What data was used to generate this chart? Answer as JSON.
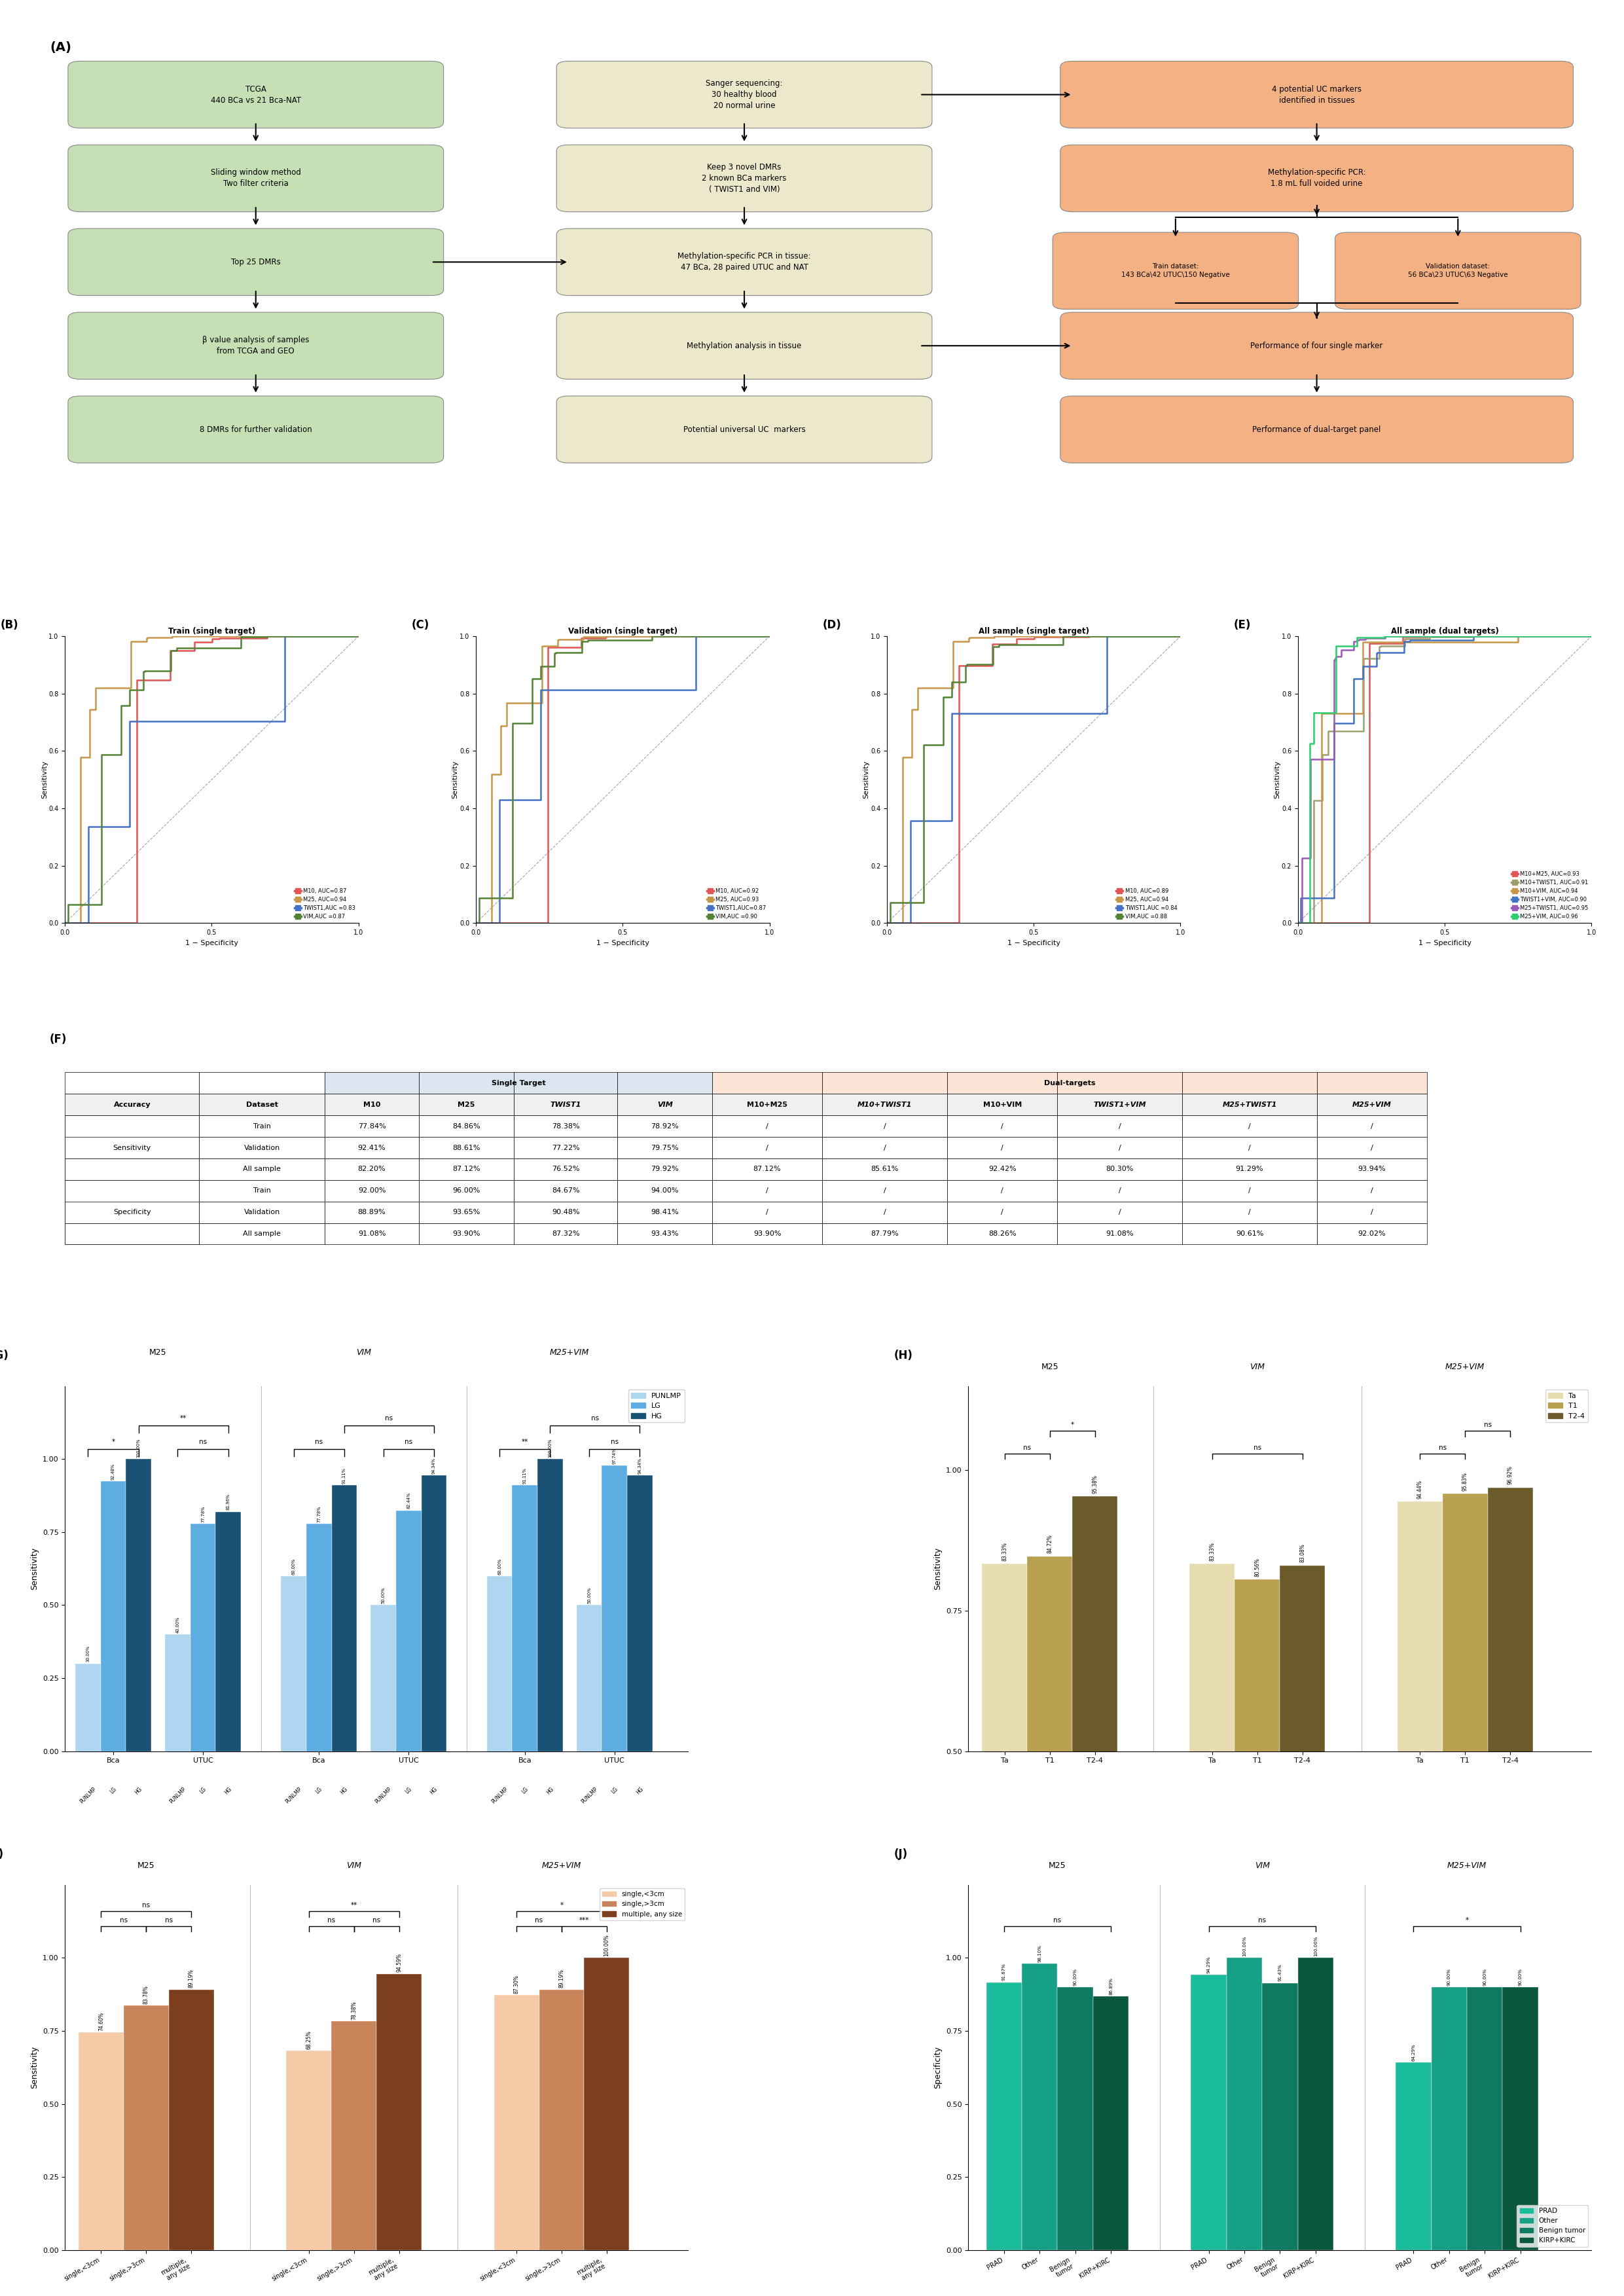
{
  "flowchart": {
    "green_boxes": [
      "TCGA\n440 BCa vs 21 Bca-NAT",
      "Sliding window method\nTwo filter criteria",
      "Top 25 DMRs",
      "β value analysis of samples\nfrom TCGA and GEO",
      "8 DMRs for further validation"
    ],
    "beige_boxes": [
      "Sanger sequencing:\n30 healthy blood\n20 normal urine",
      "Keep 3 novel DMRs\n2 known BCa markers\n( TWIST1 and VIM)",
      "Methylation-specific PCR in tissue:\n47 BCa, 28 paired UTUC and NAT",
      "Methylation analysis in tissue",
      "Potential universal UC  markers"
    ],
    "orange_boxes": [
      "4 potential UC markers\nidentified in tissues",
      "Methylation-specific PCR:\n1.8 mL full voided urine",
      "Train dataset:\n143 BCa\\42 UTUC\\150 Negative",
      "Validation dataset:\n56 BCa\\23 UTUC\\63 Negative",
      "Performance of four single marker",
      "Performance of dual-target panel"
    ],
    "green_color": "#c5e0b4",
    "beige_color": "#ebe8cc",
    "orange_color": "#f4b183"
  },
  "roc_B": {
    "title": "Train (single target)",
    "lines": [
      {
        "label": "M10, AUC=0.87",
        "color": "#e05555",
        "auc": 0.87
      },
      {
        "label": "M25, AUC=0.94",
        "color": "#c8964a",
        "auc": 0.94
      },
      {
        "label": "TWIST1,AUC =0.83",
        "color": "#4472c4",
        "auc": 0.83
      },
      {
        "label": "VIM,AUC =0.87",
        "color": "#548235",
        "auc": 0.87
      }
    ]
  },
  "roc_C": {
    "title": "Validation (single target)",
    "lines": [
      {
        "label": "M10, AUC=0.92",
        "color": "#e05555",
        "auc": 0.92
      },
      {
        "label": "M25, AUC=0.93",
        "color": "#c8964a",
        "auc": 0.93
      },
      {
        "label": "TWIST1,AUC=0.87",
        "color": "#4472c4",
        "auc": 0.87
      },
      {
        "label": "VIM,AUC =0.90",
        "color": "#548235",
        "auc": 0.9
      }
    ]
  },
  "roc_D": {
    "title": "All sample (single target)",
    "lines": [
      {
        "label": "M10, AUC=0.89",
        "color": "#e05555",
        "auc": 0.89
      },
      {
        "label": "M25, AUC=0.94",
        "color": "#c8964a",
        "auc": 0.94
      },
      {
        "label": "TWIST1,AUC =0.84",
        "color": "#4472c4",
        "auc": 0.84
      },
      {
        "label": "VIM,AUC =0.88",
        "color": "#548235",
        "auc": 0.88
      }
    ]
  },
  "roc_E": {
    "title": "All sample (dual targets)",
    "lines": [
      {
        "label": "M10+M25, AUC=0.93",
        "color": "#e05555",
        "auc": 0.93
      },
      {
        "label": "M10+TWIST1, AUC=0.91",
        "color": "#9e9e6e",
        "auc": 0.91
      },
      {
        "label": "M10+VIM, AUC=0.94",
        "color": "#c8964a",
        "auc": 0.94
      },
      {
        "label": "TWIST1+VIM, AUC=0.90",
        "color": "#4472c4",
        "auc": 0.9
      },
      {
        "label": "M25+TWIST1, AUC=0.95",
        "color": "#9b59b6",
        "auc": 0.95
      },
      {
        "label": "M25+VIM, AUC=0.96",
        "color": "#2ecc71",
        "auc": 0.96
      }
    ]
  },
  "table_F": {
    "rows": [
      [
        "Sensitivity",
        "Train",
        "77.84%",
        "84.86%",
        "78.38%",
        "78.92%",
        "/",
        "/",
        "/",
        "/",
        "/",
        "/"
      ],
      [
        "",
        "Validation",
        "92.41%",
        "88.61%",
        "77.22%",
        "79.75%",
        "/",
        "/",
        "/",
        "/",
        "/",
        "/"
      ],
      [
        "",
        "All sample",
        "82.20%",
        "87.12%",
        "76.52%",
        "79.92%",
        "87.12%",
        "85.61%",
        "92.42%",
        "80.30%",
        "91.29%",
        "93.94%"
      ],
      [
        "Specificity",
        "Train",
        "92.00%",
        "96.00%",
        "84.67%",
        "94.00%",
        "/",
        "/",
        "/",
        "/",
        "/",
        "/"
      ],
      [
        "",
        "Validation",
        "88.89%",
        "93.65%",
        "90.48%",
        "98.41%",
        "/",
        "/",
        "/",
        "/",
        "/",
        "/"
      ],
      [
        "",
        "All sample",
        "91.08%",
        "93.90%",
        "87.32%",
        "93.43%",
        "93.90%",
        "87.79%",
        "88.26%",
        "91.08%",
        "90.61%",
        "92.02%"
      ]
    ]
  },
  "bar_G": {
    "groups": [
      "M25",
      "VIM",
      "M25+VIM"
    ],
    "vals": {
      "M25": {
        "Bca": [
          0.3,
          0.9248,
          1.0
        ],
        "UTUC": [
          0.4,
          0.7778,
          0.8196
        ]
      },
      "VIM": {
        "Bca": [
          0.6,
          0.7778,
          0.9111
        ],
        "UTUC": [
          0.5,
          0.8244,
          0.9434
        ]
      },
      "M25+VIM": {
        "Bca": [
          0.6,
          0.9111,
          1.0
        ],
        "UTUC": [
          0.5,
          0.9774,
          0.9434
        ]
      }
    },
    "labels": {
      "Bca": [
        30.0,
        92.48,
        100.0
      ],
      "UTUC_M25": [
        40.0,
        77.78,
        81.96
      ],
      "Bca_VIM": [
        60.0,
        77.78,
        91.11
      ],
      "UTUC_VIM": [
        50.0,
        82.44,
        94.34
      ],
      "Bca_combo": [
        60.0,
        91.11,
        100.0
      ],
      "UTUC_combo": [
        50.0,
        97.74,
        94.34
      ]
    },
    "bar_values": [
      [
        0.3,
        0.9248,
        1.0,
        0.4,
        0.7778,
        0.8196
      ],
      [
        0.6,
        0.7778,
        0.9111,
        0.5,
        0.8244,
        0.9434
      ],
      [
        0.6,
        0.9111,
        1.0,
        0.5,
        0.9774,
        0.9434
      ]
    ],
    "bar_labels": [
      [
        "30.00%",
        "92.48%",
        "100.00%",
        "40.00%",
        "77.78%",
        "81.96%"
      ],
      [
        "60.00%",
        "77.78%",
        "91.11%",
        "50.00%",
        "82.44%",
        "94.34%"
      ],
      [
        "60.00%",
        "91.11%",
        "100.00%",
        "50.00%",
        "97.74%",
        "94.34%"
      ]
    ],
    "colors": [
      "#aed6f1",
      "#5dade2",
      "#1a5276"
    ],
    "cat_labels": [
      "Bca",
      "UTUC"
    ],
    "sub_labels": [
      "PUNLMP",
      "LG",
      "HG"
    ],
    "punlmp_color": "#d0eaf8",
    "lg_color": "#5dade2",
    "hg_color": "#1a5276"
  },
  "bar_H": {
    "groups": [
      "M25",
      "VIM",
      "M25+VIM"
    ],
    "bar_values": [
      [
        0.8333,
        0.8472,
        0.9538
      ],
      [
        0.8333,
        0.8056,
        0.8308
      ],
      [
        0.9444,
        0.9583,
        0.9692
      ]
    ],
    "bar_labels": [
      [
        "83.33%",
        "84.72%",
        "95.38%"
      ],
      [
        "83.33%",
        "80.56%",
        "83.08%"
      ],
      [
        "94.44%",
        "95.83%",
        "96.92%"
      ]
    ],
    "colors": [
      "#e8ddb0",
      "#b8a050",
      "#6b5a2a"
    ],
    "sub_labels": [
      "Ta",
      "T1",
      "T2-4"
    ],
    "ylim": [
      0.5,
      1.1
    ]
  },
  "bar_I": {
    "groups": [
      "M25",
      "VIM",
      "M25+VIM"
    ],
    "bar_values": [
      [
        0.746,
        0.8378,
        0.8919
      ],
      [
        0.6825,
        0.7838,
        0.9459
      ],
      [
        0.873,
        0.8919,
        1.0
      ]
    ],
    "bar_labels": [
      [
        "74.60%",
        "83.78%",
        "89.19%"
      ],
      [
        "68.25%",
        "78.38%",
        "94.59%"
      ],
      [
        "87.30%",
        "89.19%",
        "100.00%"
      ]
    ],
    "colors": [
      "#f5cba7",
      "#c8855a",
      "#7b3f1e"
    ],
    "sub_labels": [
      "single,<3cm",
      "single,>3cm",
      "multiple,\nany size"
    ],
    "ylim": [
      0.0,
      1.2
    ]
  },
  "bar_J": {
    "groups": [
      "M25",
      "VIM",
      "M25+VIM"
    ],
    "bar_values": [
      [
        0.9167,
        0.981,
        0.9,
        0.8689
      ],
      [
        0.9429,
        1.0,
        0.9143,
        1.0
      ],
      [
        0.6429,
        0.9,
        0.9,
        0.9
      ]
    ],
    "bar_labels": [
      [
        "91.67%",
        "98.10%",
        "90.00%",
        "86.89%"
      ],
      [
        "94.29%",
        "100.00%",
        "91.43%",
        "100.00%"
      ],
      [
        "64.29%",
        "90.00%",
        "90.00%",
        "90.00%"
      ]
    ],
    "colors": [
      "#1abc9c",
      "#16a085",
      "#0e7a61",
      "#09573f"
    ],
    "sub_labels": [
      "PRAD",
      "Other",
      "Benign\ntumor",
      "KIRP+KIRC"
    ],
    "ylim": [
      0.0,
      1.2
    ]
  }
}
